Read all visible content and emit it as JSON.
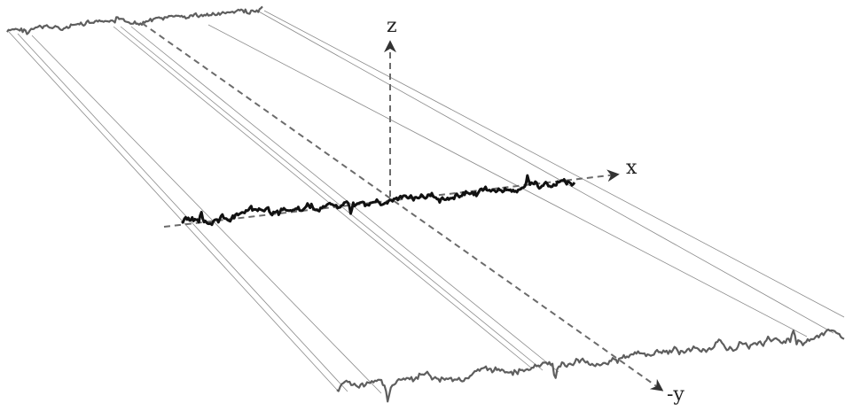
{
  "axes": {
    "x_label": "x",
    "z_label": "z",
    "y_label": "-y"
  },
  "colors": {
    "axis": "#6b6b6b",
    "guide_lines": "#8a8a8a",
    "front_profile": "#111111",
    "projected_profiles": "#5e5e5e"
  },
  "icons": [
    "arrowhead-icon"
  ]
}
